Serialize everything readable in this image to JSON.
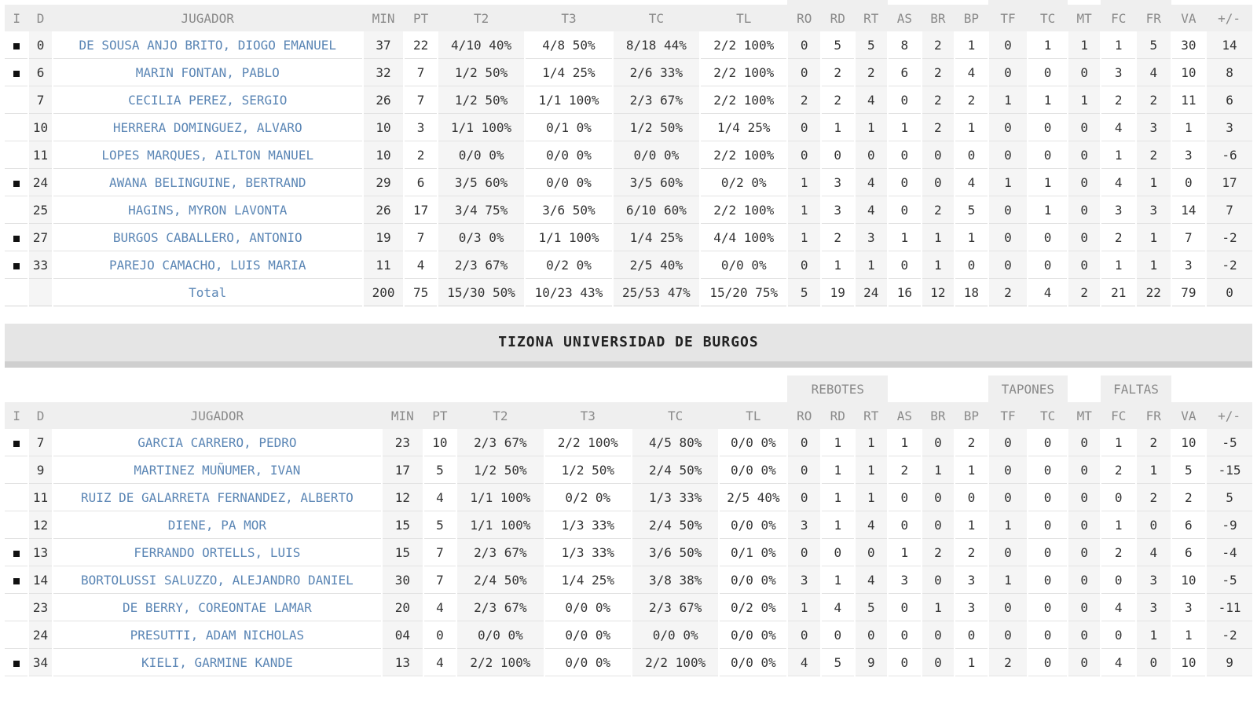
{
  "headers": {
    "i": "I",
    "d": "D",
    "jugador": "JUGADOR",
    "min": "MIN",
    "pt": "PT",
    "t2": "T2",
    "t3": "T3",
    "tc": "TC",
    "tl": "TL",
    "ro": "RO",
    "rd": "RD",
    "rt": "RT",
    "as": "AS",
    "br": "BR",
    "bp": "BP",
    "tf": "TF",
    "tcb": "TC",
    "mt": "MT",
    "fc": "FC",
    "fr": "FR",
    "va": "VA",
    "pm": "+/-"
  },
  "groups": {
    "rebotes": "REBOTES",
    "tapones": "TAPONES",
    "faltas": "FALTAS"
  },
  "team_a": {
    "players": [
      {
        "starter": true,
        "d": "0",
        "name": "DE SOUSA ANJO BRITO, DIOGO EMANUEL",
        "min": "37",
        "pt": "22",
        "t2": "4/10 40%",
        "t3": "4/8 50%",
        "tc": "8/18 44%",
        "tl": "2/2 100%",
        "ro": "0",
        "rd": "5",
        "rt": "5",
        "as": "8",
        "br": "2",
        "bp": "1",
        "tf": "0",
        "tcb": "1",
        "mt": "1",
        "fc": "1",
        "fr": "5",
        "va": "30",
        "pm": "14"
      },
      {
        "starter": true,
        "d": "6",
        "name": "MARIN FONTAN, PABLO",
        "min": "32",
        "pt": "7",
        "t2": "1/2 50%",
        "t3": "1/4 25%",
        "tc": "2/6 33%",
        "tl": "2/2 100%",
        "ro": "0",
        "rd": "2",
        "rt": "2",
        "as": "6",
        "br": "2",
        "bp": "4",
        "tf": "0",
        "tcb": "0",
        "mt": "0",
        "fc": "3",
        "fr": "4",
        "va": "10",
        "pm": "8"
      },
      {
        "starter": false,
        "d": "7",
        "name": "CECILIA PEREZ, SERGIO",
        "min": "26",
        "pt": "7",
        "t2": "1/2 50%",
        "t3": "1/1 100%",
        "tc": "2/3 67%",
        "tl": "2/2 100%",
        "ro": "2",
        "rd": "2",
        "rt": "4",
        "as": "0",
        "br": "2",
        "bp": "2",
        "tf": "1",
        "tcb": "1",
        "mt": "1",
        "fc": "2",
        "fr": "2",
        "va": "11",
        "pm": "6"
      },
      {
        "starter": false,
        "d": "10",
        "name": "HERRERA DOMINGUEZ, ALVARO",
        "min": "10",
        "pt": "3",
        "t2": "1/1 100%",
        "t3": "0/1 0%",
        "tc": "1/2 50%",
        "tl": "1/4 25%",
        "ro": "0",
        "rd": "1",
        "rt": "1",
        "as": "1",
        "br": "2",
        "bp": "1",
        "tf": "0",
        "tcb": "0",
        "mt": "0",
        "fc": "4",
        "fr": "3",
        "va": "1",
        "pm": "3"
      },
      {
        "starter": false,
        "d": "11",
        "name": "LOPES MARQUES, AILTON MANUEL",
        "min": "10",
        "pt": "2",
        "t2": "0/0 0%",
        "t3": "0/0 0%",
        "tc": "0/0 0%",
        "tl": "2/2 100%",
        "ro": "0",
        "rd": "0",
        "rt": "0",
        "as": "0",
        "br": "0",
        "bp": "0",
        "tf": "0",
        "tcb": "0",
        "mt": "0",
        "fc": "1",
        "fr": "2",
        "va": "3",
        "pm": "-6"
      },
      {
        "starter": true,
        "d": "24",
        "name": "AWANA BELINGUINE, BERTRAND",
        "min": "29",
        "pt": "6",
        "t2": "3/5 60%",
        "t3": "0/0 0%",
        "tc": "3/5 60%",
        "tl": "0/2 0%",
        "ro": "1",
        "rd": "3",
        "rt": "4",
        "as": "0",
        "br": "0",
        "bp": "4",
        "tf": "1",
        "tcb": "1",
        "mt": "0",
        "fc": "4",
        "fr": "1",
        "va": "0",
        "pm": "17"
      },
      {
        "starter": false,
        "d": "25",
        "name": "HAGINS, MYRON LAVONTA",
        "min": "26",
        "pt": "17",
        "t2": "3/4 75%",
        "t3": "3/6 50%",
        "tc": "6/10 60%",
        "tl": "2/2 100%",
        "ro": "1",
        "rd": "3",
        "rt": "4",
        "as": "0",
        "br": "2",
        "bp": "5",
        "tf": "0",
        "tcb": "1",
        "mt": "0",
        "fc": "3",
        "fr": "3",
        "va": "14",
        "pm": "7"
      },
      {
        "starter": true,
        "d": "27",
        "name": "BURGOS CABALLERO, ANTONIO",
        "min": "19",
        "pt": "7",
        "t2": "0/3 0%",
        "t3": "1/1 100%",
        "tc": "1/4 25%",
        "tl": "4/4 100%",
        "ro": "1",
        "rd": "2",
        "rt": "3",
        "as": "1",
        "br": "1",
        "bp": "1",
        "tf": "0",
        "tcb": "0",
        "mt": "0",
        "fc": "2",
        "fr": "1",
        "va": "7",
        "pm": "-2"
      },
      {
        "starter": true,
        "d": "33",
        "name": "PAREJO CAMACHO, LUIS MARIA",
        "min": "11",
        "pt": "4",
        "t2": "2/3 67%",
        "t3": "0/2 0%",
        "tc": "2/5 40%",
        "tl": "0/0 0%",
        "ro": "0",
        "rd": "1",
        "rt": "1",
        "as": "0",
        "br": "1",
        "bp": "0",
        "tf": "0",
        "tcb": "0",
        "mt": "0",
        "fc": "1",
        "fr": "1",
        "va": "3",
        "pm": "-2"
      }
    ],
    "total": {
      "label": "Total",
      "min": "200",
      "pt": "75",
      "t2": "15/30 50%",
      "t3": "10/23 43%",
      "tc": "25/53 47%",
      "tl": "15/20 75%",
      "ro": "5",
      "rd": "19",
      "rt": "24",
      "as": "16",
      "br": "12",
      "bp": "18",
      "tf": "2",
      "tcb": "4",
      "mt": "2",
      "fc": "21",
      "fr": "22",
      "va": "79",
      "pm": "0"
    }
  },
  "team_b": {
    "name": "TIZONA UNIVERSIDAD DE BURGOS",
    "players": [
      {
        "starter": true,
        "d": "7",
        "name": "GARCIA CARRERO, PEDRO",
        "min": "23",
        "pt": "10",
        "t2": "2/3 67%",
        "t3": "2/2 100%",
        "tc": "4/5 80%",
        "tl": "0/0 0%",
        "ro": "0",
        "rd": "1",
        "rt": "1",
        "as": "1",
        "br": "0",
        "bp": "2",
        "tf": "0",
        "tcb": "0",
        "mt": "0",
        "fc": "1",
        "fr": "2",
        "va": "10",
        "pm": "-5"
      },
      {
        "starter": false,
        "d": "9",
        "name": "MARTINEZ MUÑUMER, IVAN",
        "min": "17",
        "pt": "5",
        "t2": "1/2 50%",
        "t3": "1/2 50%",
        "tc": "2/4 50%",
        "tl": "0/0 0%",
        "ro": "0",
        "rd": "1",
        "rt": "1",
        "as": "2",
        "br": "1",
        "bp": "1",
        "tf": "0",
        "tcb": "0",
        "mt": "0",
        "fc": "2",
        "fr": "1",
        "va": "5",
        "pm": "-15"
      },
      {
        "starter": false,
        "d": "11",
        "name": "RUIZ DE GALARRETA FERNANDEZ, ALBERTO",
        "min": "12",
        "pt": "4",
        "t2": "1/1 100%",
        "t3": "0/2 0%",
        "tc": "1/3 33%",
        "tl": "2/5 40%",
        "ro": "0",
        "rd": "1",
        "rt": "1",
        "as": "0",
        "br": "0",
        "bp": "0",
        "tf": "0",
        "tcb": "0",
        "mt": "0",
        "fc": "0",
        "fr": "2",
        "va": "2",
        "pm": "5"
      },
      {
        "starter": false,
        "d": "12",
        "name": "DIENE, PA MOR",
        "min": "15",
        "pt": "5",
        "t2": "1/1 100%",
        "t3": "1/3 33%",
        "tc": "2/4 50%",
        "tl": "0/0 0%",
        "ro": "3",
        "rd": "1",
        "rt": "4",
        "as": "0",
        "br": "0",
        "bp": "1",
        "tf": "1",
        "tcb": "0",
        "mt": "0",
        "fc": "1",
        "fr": "0",
        "va": "6",
        "pm": "-9"
      },
      {
        "starter": true,
        "d": "13",
        "name": "FERRANDO ORTELLS, LUIS",
        "min": "15",
        "pt": "7",
        "t2": "2/3 67%",
        "t3": "1/3 33%",
        "tc": "3/6 50%",
        "tl": "0/1 0%",
        "ro": "0",
        "rd": "0",
        "rt": "0",
        "as": "1",
        "br": "2",
        "bp": "2",
        "tf": "0",
        "tcb": "0",
        "mt": "0",
        "fc": "2",
        "fr": "4",
        "va": "6",
        "pm": "-4"
      },
      {
        "starter": true,
        "d": "14",
        "name": "BORTOLUSSI SALUZZO, ALEJANDRO DANIEL",
        "min": "30",
        "pt": "7",
        "t2": "2/4 50%",
        "t3": "1/4 25%",
        "tc": "3/8 38%",
        "tl": "0/0 0%",
        "ro": "3",
        "rd": "1",
        "rt": "4",
        "as": "3",
        "br": "0",
        "bp": "3",
        "tf": "1",
        "tcb": "0",
        "mt": "0",
        "fc": "0",
        "fr": "3",
        "va": "10",
        "pm": "-5"
      },
      {
        "starter": false,
        "d": "23",
        "name": "DE BERRY, COREONTAE LAMAR",
        "min": "20",
        "pt": "4",
        "t2": "2/3 67%",
        "t3": "0/0 0%",
        "tc": "2/3 67%",
        "tl": "0/2 0%",
        "ro": "1",
        "rd": "4",
        "rt": "5",
        "as": "0",
        "br": "1",
        "bp": "3",
        "tf": "0",
        "tcb": "0",
        "mt": "0",
        "fc": "4",
        "fr": "3",
        "va": "3",
        "pm": "-11"
      },
      {
        "starter": false,
        "d": "24",
        "name": "PRESUTTI, ADAM NICHOLAS",
        "min": "04",
        "pt": "0",
        "t2": "0/0 0%",
        "t3": "0/0 0%",
        "tc": "0/0 0%",
        "tl": "0/0 0%",
        "ro": "0",
        "rd": "0",
        "rt": "0",
        "as": "0",
        "br": "0",
        "bp": "0",
        "tf": "0",
        "tcb": "0",
        "mt": "0",
        "fc": "0",
        "fr": "1",
        "va": "1",
        "pm": "-2"
      },
      {
        "starter": true,
        "d": "34",
        "name": "KIELI, GARMINE KANDE",
        "min": "13",
        "pt": "4",
        "t2": "2/2 100%",
        "t3": "0/0 0%",
        "tc": "2/2 100%",
        "tl": "0/0 0%",
        "ro": "4",
        "rd": "5",
        "rt": "9",
        "as": "0",
        "br": "0",
        "bp": "1",
        "tf": "2",
        "tcb": "0",
        "mt": "0",
        "fc": "4",
        "fr": "0",
        "va": "10",
        "pm": "9"
      }
    ]
  }
}
